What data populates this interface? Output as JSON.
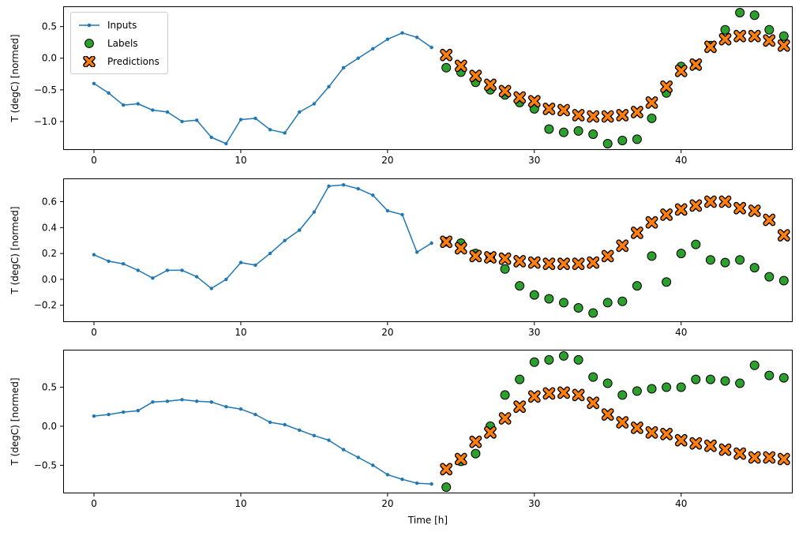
{
  "figure": {
    "xlabel": "Time [h]",
    "ylabel": "T (degC) [normed]",
    "legend": [
      {
        "label": "Inputs",
        "marker": "line-dot"
      },
      {
        "label": "Labels",
        "marker": "circle"
      },
      {
        "label": "Predictions",
        "marker": "X"
      }
    ]
  },
  "colors": {
    "inputs": "#1f77b4",
    "labels": "#2ca02c",
    "predictions": "#ff7f0e",
    "edge": "#000000"
  },
  "chart_data": [
    {
      "type": "line-scatter",
      "title": "",
      "xlabel": "",
      "ylabel": "T (degC) [normed]",
      "xlim": [
        -2.1,
        47.6
      ],
      "ylim": [
        -1.45,
        0.82
      ],
      "xticks": [
        0,
        10,
        20,
        30,
        40
      ],
      "yticks": [
        0.5,
        0.0,
        -0.5,
        -1.0
      ],
      "grid": false,
      "legend_position": "upper-left",
      "series": [
        {
          "name": "Inputs",
          "type": "line",
          "marker": "dot",
          "color": "#1f77b4",
          "x": [
            0,
            1,
            2,
            3,
            4,
            5,
            6,
            7,
            8,
            9,
            10,
            11,
            12,
            13,
            14,
            15,
            16,
            17,
            18,
            19,
            20,
            21,
            22,
            23
          ],
          "y": [
            -0.4,
            -0.55,
            -0.74,
            -0.72,
            -0.82,
            -0.85,
            -1.0,
            -0.98,
            -1.25,
            -1.35,
            -0.97,
            -0.95,
            -1.13,
            -1.18,
            -0.85,
            -0.72,
            -0.45,
            -0.15,
            0.0,
            0.15,
            0.3,
            0.4,
            0.33,
            0.17
          ]
        },
        {
          "name": "Labels",
          "type": "scatter",
          "marker": "circle",
          "color": "#2ca02c",
          "edgecolor": "#000000",
          "x": [
            24,
            25,
            26,
            27,
            28,
            29,
            30,
            31,
            32,
            33,
            34,
            35,
            36,
            37,
            38,
            39,
            40,
            41,
            42,
            43,
            44,
            45,
            46,
            47
          ],
          "y": [
            -0.15,
            -0.22,
            -0.38,
            -0.5,
            -0.58,
            -0.7,
            -0.8,
            -1.12,
            -1.17,
            -1.15,
            -1.2,
            -1.35,
            -1.3,
            -1.28,
            -0.95,
            -0.55,
            -0.13,
            -0.1,
            0.2,
            0.45,
            0.72,
            0.68,
            0.45,
            0.35
          ]
        },
        {
          "name": "Predictions",
          "type": "scatter",
          "marker": "X",
          "color": "#ff7f0e",
          "edgecolor": "#000000",
          "x": [
            24,
            25,
            26,
            27,
            28,
            29,
            30,
            31,
            32,
            33,
            34,
            35,
            36,
            37,
            38,
            39,
            40,
            41,
            42,
            43,
            44,
            45,
            46,
            47
          ],
          "y": [
            0.05,
            -0.12,
            -0.28,
            -0.42,
            -0.52,
            -0.62,
            -0.68,
            -0.8,
            -0.82,
            -0.9,
            -0.92,
            -0.92,
            -0.9,
            -0.85,
            -0.7,
            -0.45,
            -0.2,
            -0.1,
            0.18,
            0.3,
            0.35,
            0.35,
            0.28,
            0.2
          ]
        }
      ]
    },
    {
      "type": "line-scatter",
      "title": "",
      "xlabel": "",
      "ylabel": "T (degC) [normed]",
      "xlim": [
        -2.1,
        47.6
      ],
      "ylim": [
        -0.33,
        0.78
      ],
      "xticks": [
        0,
        10,
        20,
        30,
        40
      ],
      "yticks": [
        0.6,
        0.4,
        0.2,
        0.0,
        -0.2
      ],
      "grid": false,
      "series": [
        {
          "name": "Inputs",
          "type": "line",
          "marker": "dot",
          "color": "#1f77b4",
          "x": [
            0,
            1,
            2,
            3,
            4,
            5,
            6,
            7,
            8,
            9,
            10,
            11,
            12,
            13,
            14,
            15,
            16,
            17,
            18,
            19,
            20,
            21,
            22,
            23
          ],
          "y": [
            0.19,
            0.14,
            0.12,
            0.07,
            0.01,
            0.07,
            0.07,
            0.02,
            -0.07,
            0.0,
            0.13,
            0.11,
            0.2,
            0.3,
            0.38,
            0.52,
            0.72,
            0.73,
            0.7,
            0.65,
            0.53,
            0.5,
            0.21,
            0.28
          ]
        },
        {
          "name": "Labels",
          "type": "scatter",
          "marker": "circle",
          "color": "#2ca02c",
          "edgecolor": "#000000",
          "x": [
            24,
            25,
            26,
            27,
            28,
            29,
            30,
            31,
            32,
            33,
            34,
            35,
            36,
            37,
            38,
            39,
            40,
            41,
            42,
            43,
            44,
            45,
            46,
            47
          ],
          "y": [
            0.29,
            0.28,
            0.2,
            0.17,
            0.08,
            -0.05,
            -0.12,
            -0.15,
            -0.18,
            -0.22,
            -0.26,
            -0.18,
            -0.17,
            -0.05,
            0.18,
            -0.02,
            0.2,
            0.27,
            0.15,
            0.13,
            0.15,
            0.09,
            0.02,
            -0.01
          ]
        },
        {
          "name": "Predictions",
          "type": "scatter",
          "marker": "X",
          "color": "#ff7f0e",
          "edgecolor": "#000000",
          "x": [
            24,
            25,
            26,
            27,
            28,
            29,
            30,
            31,
            32,
            33,
            34,
            35,
            36,
            37,
            38,
            39,
            40,
            41,
            42,
            43,
            44,
            45,
            46,
            47
          ],
          "y": [
            0.29,
            0.24,
            0.18,
            0.17,
            0.16,
            0.14,
            0.13,
            0.12,
            0.12,
            0.12,
            0.13,
            0.18,
            0.26,
            0.36,
            0.44,
            0.5,
            0.54,
            0.57,
            0.6,
            0.6,
            0.55,
            0.53,
            0.46,
            0.34
          ]
        }
      ]
    },
    {
      "type": "line-scatter",
      "title": "",
      "xlabel": "Time [h]",
      "ylabel": "T (degC) [normed]",
      "xlim": [
        -2.1,
        47.6
      ],
      "ylim": [
        -0.86,
        0.98
      ],
      "xticks": [
        0,
        10,
        20,
        30,
        40
      ],
      "yticks": [
        0.5,
        0.0,
        -0.5
      ],
      "grid": false,
      "series": [
        {
          "name": "Inputs",
          "type": "line",
          "marker": "dot",
          "color": "#1f77b4",
          "x": [
            0,
            1,
            2,
            3,
            4,
            5,
            6,
            7,
            8,
            9,
            10,
            11,
            12,
            13,
            14,
            15,
            16,
            17,
            18,
            19,
            20,
            21,
            22,
            23
          ],
          "y": [
            0.13,
            0.15,
            0.18,
            0.2,
            0.31,
            0.32,
            0.34,
            0.32,
            0.31,
            0.25,
            0.22,
            0.15,
            0.05,
            0.02,
            -0.05,
            -0.12,
            -0.18,
            -0.3,
            -0.4,
            -0.5,
            -0.62,
            -0.68,
            -0.73,
            -0.74
          ]
        },
        {
          "name": "Labels",
          "type": "scatter",
          "marker": "circle",
          "color": "#2ca02c",
          "edgecolor": "#000000",
          "x": [
            24,
            25,
            26,
            27,
            28,
            29,
            30,
            31,
            32,
            33,
            34,
            35,
            36,
            37,
            38,
            39,
            40,
            41,
            42,
            43,
            44,
            45,
            46,
            47
          ],
          "y": [
            -0.78,
            -0.45,
            -0.35,
            0.0,
            0.4,
            0.6,
            0.82,
            0.85,
            0.9,
            0.85,
            0.63,
            0.55,
            0.4,
            0.45,
            0.48,
            0.5,
            0.5,
            0.6,
            0.6,
            0.58,
            0.55,
            0.78,
            0.65,
            0.62
          ]
        },
        {
          "name": "Predictions",
          "type": "scatter",
          "marker": "X",
          "color": "#ff7f0e",
          "edgecolor": "#000000",
          "x": [
            24,
            25,
            26,
            27,
            28,
            29,
            30,
            31,
            32,
            33,
            34,
            35,
            36,
            37,
            38,
            39,
            40,
            41,
            42,
            43,
            44,
            45,
            46,
            47
          ],
          "y": [
            -0.55,
            -0.42,
            -0.2,
            -0.08,
            0.1,
            0.25,
            0.38,
            0.42,
            0.43,
            0.4,
            0.3,
            0.15,
            0.05,
            -0.02,
            -0.08,
            -0.1,
            -0.18,
            -0.22,
            -0.25,
            -0.3,
            -0.35,
            -0.4,
            -0.4,
            -0.42
          ]
        }
      ]
    }
  ]
}
